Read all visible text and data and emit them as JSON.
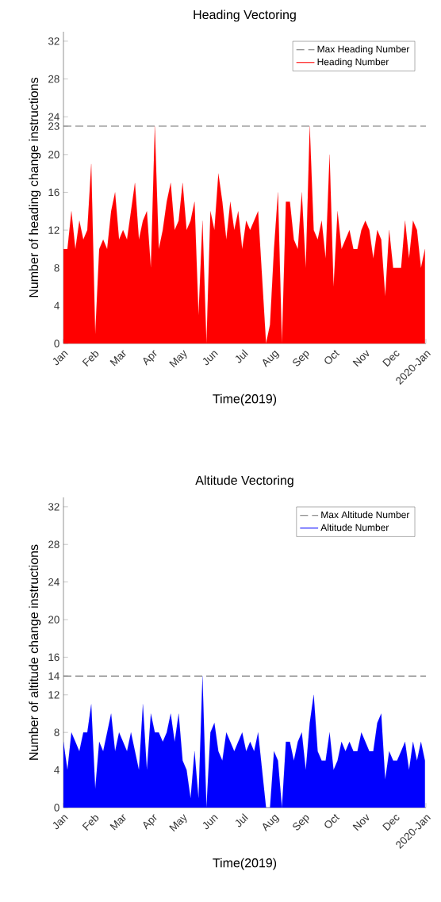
{
  "chart_data": [
    {
      "type": "area",
      "title": "Heading Vectoring",
      "xlabel": "Time(2019)",
      "ylabel": "Number of heading change instructions",
      "x": [
        "2019-01-01",
        "2019-01-05",
        "2019-01-09",
        "2019-01-13",
        "2019-01-17",
        "2019-01-21",
        "2019-01-25",
        "2019-01-29",
        "2019-02-02",
        "2019-02-06",
        "2019-02-10",
        "2019-02-14",
        "2019-02-18",
        "2019-02-22",
        "2019-02-26",
        "2019-03-02",
        "2019-03-06",
        "2019-03-10",
        "2019-03-14",
        "2019-03-18",
        "2019-03-22",
        "2019-03-26",
        "2019-03-30",
        "2019-04-03",
        "2019-04-07",
        "2019-04-11",
        "2019-04-15",
        "2019-04-19",
        "2019-04-23",
        "2019-04-27",
        "2019-05-01",
        "2019-05-05",
        "2019-05-09",
        "2019-05-13",
        "2019-05-17",
        "2019-05-21",
        "2019-05-25",
        "2019-05-29",
        "2019-06-02",
        "2019-06-06",
        "2019-06-10",
        "2019-06-14",
        "2019-06-18",
        "2019-06-22",
        "2019-06-26",
        "2019-06-30",
        "2019-07-04",
        "2019-07-08",
        "2019-07-12",
        "2019-07-16",
        "2019-07-20",
        "2019-07-24",
        "2019-07-28",
        "2019-08-01",
        "2019-08-05",
        "2019-08-09",
        "2019-08-13",
        "2019-08-17",
        "2019-08-21",
        "2019-08-25",
        "2019-08-29",
        "2019-09-02",
        "2019-09-06",
        "2019-09-10",
        "2019-09-14",
        "2019-09-18",
        "2019-09-22",
        "2019-09-26",
        "2019-09-30",
        "2019-10-04",
        "2019-10-08",
        "2019-10-12",
        "2019-10-16",
        "2019-10-20",
        "2019-10-24",
        "2019-10-28",
        "2019-11-01",
        "2019-11-05",
        "2019-11-09",
        "2019-11-13",
        "2019-11-17",
        "2019-11-21",
        "2019-11-25",
        "2019-11-29",
        "2019-12-03",
        "2019-12-07",
        "2019-12-11",
        "2019-12-15",
        "2019-12-19",
        "2019-12-23",
        "2019-12-27",
        "2019-12-31"
      ],
      "series": [
        {
          "name": "Heading Number",
          "color": "#ff0000",
          "values": [
            10,
            10,
            14,
            10,
            13,
            11,
            12,
            19,
            1,
            10,
            11,
            10,
            14,
            16,
            11,
            12,
            11,
            14,
            17,
            11,
            13,
            14,
            8,
            23,
            10,
            12,
            15,
            17,
            12,
            13,
            17,
            12,
            13,
            15,
            3,
            13,
            0,
            14,
            12,
            18,
            15,
            11,
            15,
            12,
            14,
            10,
            13,
            12,
            13,
            14,
            7,
            0,
            2,
            10,
            16,
            0,
            15,
            15,
            11,
            10,
            16,
            8,
            23,
            12,
            11,
            13,
            9,
            20,
            6,
            14,
            10,
            11,
            12,
            10,
            10,
            12,
            13,
            12,
            9,
            12,
            11,
            5,
            12,
            8,
            8,
            8,
            13,
            9,
            13,
            12,
            8,
            10
          ]
        }
      ],
      "xlim": [
        "2019-01-01",
        "2020-01-01"
      ],
      "xticks": [
        {
          "value": "2019-01-01",
          "label": "Jan"
        },
        {
          "value": "2019-02-01",
          "label": "Feb"
        },
        {
          "value": "2019-03-01",
          "label": "Mar"
        },
        {
          "value": "2019-04-01",
          "label": "Apr"
        },
        {
          "value": "2019-05-01",
          "label": "May"
        },
        {
          "value": "2019-06-01",
          "label": "Jun"
        },
        {
          "value": "2019-07-01",
          "label": "Jul"
        },
        {
          "value": "2019-08-01",
          "label": "Aug"
        },
        {
          "value": "2019-09-01",
          "label": "Sep"
        },
        {
          "value": "2019-10-01",
          "label": "Oct"
        },
        {
          "value": "2019-11-01",
          "label": "Nov"
        },
        {
          "value": "2019-12-01",
          "label": "Dec"
        },
        {
          "value": "2020-01-01",
          "label": "2020-Jan"
        }
      ],
      "ylim": [
        0,
        33
      ],
      "yticks": [
        0,
        4,
        8,
        12,
        16,
        20,
        23,
        24,
        28,
        32
      ],
      "ref_lines": [
        {
          "axis": "y",
          "value": 23,
          "label": "Max Heading Number",
          "color": "#707070",
          "line_style": "dashed"
        }
      ],
      "legend": "top right"
    },
    {
      "type": "area",
      "title": "Altitude Vectoring",
      "xlabel": "Time(2019)",
      "ylabel": "Number of altitude change instructions",
      "x": [
        "2019-01-01",
        "2019-01-05",
        "2019-01-09",
        "2019-01-13",
        "2019-01-17",
        "2019-01-21",
        "2019-01-25",
        "2019-01-29",
        "2019-02-02",
        "2019-02-06",
        "2019-02-10",
        "2019-02-14",
        "2019-02-18",
        "2019-02-22",
        "2019-02-26",
        "2019-03-02",
        "2019-03-06",
        "2019-03-10",
        "2019-03-14",
        "2019-03-18",
        "2019-03-22",
        "2019-03-26",
        "2019-03-30",
        "2019-04-03",
        "2019-04-07",
        "2019-04-11",
        "2019-04-15",
        "2019-04-19",
        "2019-04-23",
        "2019-04-27",
        "2019-05-01",
        "2019-05-05",
        "2019-05-09",
        "2019-05-13",
        "2019-05-17",
        "2019-05-21",
        "2019-05-25",
        "2019-05-29",
        "2019-06-02",
        "2019-06-06",
        "2019-06-10",
        "2019-06-14",
        "2019-06-18",
        "2019-06-22",
        "2019-06-26",
        "2019-06-30",
        "2019-07-04",
        "2019-07-08",
        "2019-07-12",
        "2019-07-16",
        "2019-07-20",
        "2019-07-24",
        "2019-07-28",
        "2019-08-01",
        "2019-08-05",
        "2019-08-09",
        "2019-08-13",
        "2019-08-17",
        "2019-08-21",
        "2019-08-25",
        "2019-08-29",
        "2019-09-02",
        "2019-09-06",
        "2019-09-10",
        "2019-09-14",
        "2019-09-18",
        "2019-09-22",
        "2019-09-26",
        "2019-09-30",
        "2019-10-04",
        "2019-10-08",
        "2019-10-12",
        "2019-10-16",
        "2019-10-20",
        "2019-10-24",
        "2019-10-28",
        "2019-11-01",
        "2019-11-05",
        "2019-11-09",
        "2019-11-13",
        "2019-11-17",
        "2019-11-21",
        "2019-11-25",
        "2019-11-29",
        "2019-12-03",
        "2019-12-07",
        "2019-12-11",
        "2019-12-15",
        "2019-12-19",
        "2019-12-23",
        "2019-12-27",
        "2019-12-31"
      ],
      "series": [
        {
          "name": "Altitude Number",
          "color": "#0000ff",
          "values": [
            7,
            4,
            8,
            7,
            6,
            8,
            8,
            11,
            2,
            7,
            6,
            8,
            10,
            6,
            8,
            7,
            6,
            8,
            6,
            4,
            11,
            4,
            10,
            8,
            8,
            7,
            8,
            10,
            7,
            10,
            5,
            4,
            1,
            6,
            1,
            14,
            0,
            8,
            9,
            6,
            5,
            8,
            7,
            6,
            7,
            8,
            6,
            7,
            6,
            8,
            4,
            0,
            0,
            6,
            5,
            0,
            7,
            7,
            5,
            7,
            8,
            4,
            9,
            12,
            6,
            5,
            5,
            8,
            4,
            5,
            7,
            6,
            7,
            6,
            6,
            8,
            7,
            6,
            6,
            9,
            10,
            3,
            6,
            5,
            5,
            6,
            7,
            4,
            7,
            5,
            7,
            5
          ]
        }
      ],
      "xlim": [
        "2019-01-01",
        "2020-01-01"
      ],
      "xticks": [
        {
          "value": "2019-01-01",
          "label": "Jan"
        },
        {
          "value": "2019-02-01",
          "label": "Feb"
        },
        {
          "value": "2019-03-01",
          "label": "Mar"
        },
        {
          "value": "2019-04-01",
          "label": "Apr"
        },
        {
          "value": "2019-05-01",
          "label": "May"
        },
        {
          "value": "2019-06-01",
          "label": "Jun"
        },
        {
          "value": "2019-07-01",
          "label": "Jul"
        },
        {
          "value": "2019-08-01",
          "label": "Aug"
        },
        {
          "value": "2019-09-01",
          "label": "Sep"
        },
        {
          "value": "2019-10-01",
          "label": "Oct"
        },
        {
          "value": "2019-11-01",
          "label": "Nov"
        },
        {
          "value": "2019-12-01",
          "label": "Dec"
        },
        {
          "value": "2020-01-01",
          "label": "2020-Jan"
        }
      ],
      "ylim": [
        0,
        33
      ],
      "yticks": [
        0,
        4,
        8,
        12,
        14,
        16,
        20,
        24,
        28,
        32
      ],
      "ref_lines": [
        {
          "axis": "y",
          "value": 14,
          "label": "Max Altitude Number",
          "color": "#707070",
          "line_style": "dashed"
        }
      ],
      "legend": "top right"
    }
  ]
}
